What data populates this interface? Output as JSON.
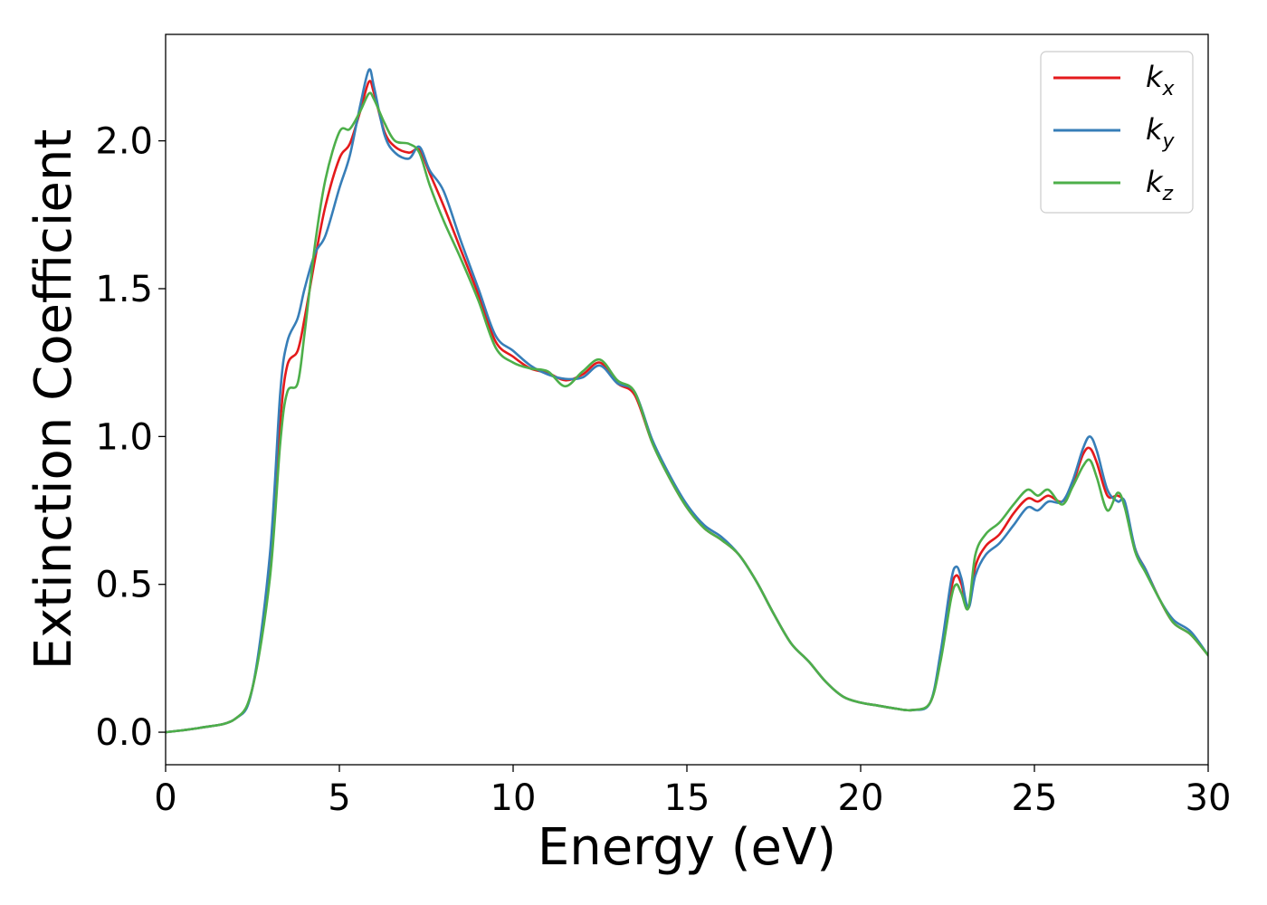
{
  "chart_data": {
    "type": "line",
    "xlabel": "Energy (eV)",
    "ylabel": "Extinction Coefficient",
    "xlim": [
      0,
      30
    ],
    "ylim": [
      -0.11,
      2.36
    ],
    "xticks": [
      0,
      5,
      10,
      15,
      20,
      25,
      30
    ],
    "xtick_labels": [
      "0",
      "5",
      "10",
      "15",
      "20",
      "25",
      "30"
    ],
    "yticks": [
      0.0,
      0.5,
      1.0,
      1.5,
      2.0
    ],
    "ytick_labels": [
      "0.0",
      "0.5",
      "1.0",
      "1.5",
      "2.0"
    ],
    "grid": false,
    "legend_position": "top-right",
    "series": [
      {
        "name": "k_x",
        "label_main": "k",
        "label_sub": "x",
        "color": "#e41a1c",
        "x": [
          0,
          1,
          2,
          2.5,
          3,
          3.3,
          3.5,
          3.8,
          4,
          4.3,
          4.6,
          5,
          5.3,
          5.6,
          5.85,
          6,
          6.3,
          6.6,
          7,
          7.3,
          7.6,
          8,
          8.5,
          9,
          9.5,
          10,
          10.5,
          11,
          11.5,
          12,
          12.5,
          13,
          13.5,
          14,
          14.5,
          15,
          15.5,
          16,
          16.5,
          17,
          17.5,
          18,
          18.5,
          19,
          19.5,
          20,
          20.5,
          21,
          21.5,
          22,
          22.3,
          22.6,
          22.75,
          22.9,
          23.1,
          23.3,
          23.6,
          24,
          24.4,
          24.8,
          25.1,
          25.4,
          25.8,
          26.1,
          26.4,
          26.6,
          26.8,
          27.1,
          27.4,
          27.6,
          27.9,
          28.2,
          28.6,
          29,
          29.5,
          30
        ],
        "y": [
          0.0,
          0.015,
          0.045,
          0.15,
          0.55,
          1.05,
          1.24,
          1.29,
          1.4,
          1.6,
          1.78,
          1.94,
          1.99,
          2.1,
          2.2,
          2.16,
          2.03,
          1.98,
          1.96,
          1.97,
          1.89,
          1.78,
          1.63,
          1.48,
          1.32,
          1.27,
          1.23,
          1.215,
          1.19,
          1.21,
          1.25,
          1.18,
          1.14,
          0.98,
          0.86,
          0.76,
          0.69,
          0.65,
          0.6,
          0.51,
          0.4,
          0.3,
          0.24,
          0.17,
          0.12,
          0.1,
          0.09,
          0.08,
          0.075,
          0.1,
          0.25,
          0.48,
          0.53,
          0.5,
          0.42,
          0.56,
          0.63,
          0.67,
          0.74,
          0.79,
          0.78,
          0.8,
          0.78,
          0.84,
          0.94,
          0.96,
          0.91,
          0.8,
          0.8,
          0.77,
          0.62,
          0.55,
          0.45,
          0.37,
          0.33,
          0.26
        ]
      },
      {
        "name": "k_y",
        "label_main": "k",
        "label_sub": "y",
        "color": "#377eb8",
        "x": [
          0,
          1,
          2,
          2.5,
          3,
          3.3,
          3.5,
          3.8,
          4,
          4.3,
          4.6,
          5,
          5.3,
          5.6,
          5.85,
          6,
          6.3,
          6.6,
          7,
          7.3,
          7.6,
          8,
          8.5,
          9,
          9.5,
          10,
          10.5,
          11,
          11.5,
          12,
          12.5,
          13,
          13.5,
          14,
          14.5,
          15,
          15.5,
          16,
          16.5,
          17,
          17.5,
          18,
          18.5,
          19,
          19.5,
          20,
          20.5,
          21,
          21.5,
          22,
          22.3,
          22.6,
          22.75,
          22.9,
          23.1,
          23.3,
          23.6,
          24,
          24.4,
          24.8,
          25.1,
          25.4,
          25.8,
          26.1,
          26.4,
          26.6,
          26.8,
          27.1,
          27.4,
          27.6,
          27.9,
          28.2,
          28.6,
          29,
          29.5,
          30
        ],
        "y": [
          0.0,
          0.015,
          0.045,
          0.15,
          0.6,
          1.15,
          1.32,
          1.4,
          1.5,
          1.62,
          1.68,
          1.84,
          1.95,
          2.12,
          2.24,
          2.18,
          2.02,
          1.96,
          1.94,
          1.98,
          1.9,
          1.83,
          1.66,
          1.5,
          1.34,
          1.29,
          1.24,
          1.21,
          1.195,
          1.2,
          1.24,
          1.18,
          1.15,
          0.99,
          0.87,
          0.77,
          0.7,
          0.66,
          0.6,
          0.51,
          0.4,
          0.3,
          0.24,
          0.17,
          0.12,
          0.1,
          0.09,
          0.08,
          0.075,
          0.1,
          0.27,
          0.51,
          0.56,
          0.52,
          0.42,
          0.53,
          0.6,
          0.64,
          0.7,
          0.76,
          0.75,
          0.78,
          0.78,
          0.85,
          0.96,
          1.0,
          0.95,
          0.82,
          0.78,
          0.78,
          0.62,
          0.55,
          0.45,
          0.38,
          0.34,
          0.26
        ]
      },
      {
        "name": "k_z",
        "label_main": "k",
        "label_sub": "z",
        "color": "#4daf4a",
        "x": [
          0,
          1,
          2,
          2.5,
          3,
          3.3,
          3.5,
          3.8,
          4,
          4.3,
          4.6,
          5,
          5.3,
          5.6,
          5.85,
          6,
          6.3,
          6.6,
          7,
          7.3,
          7.6,
          8,
          8.5,
          9,
          9.5,
          10,
          10.5,
          11,
          11.5,
          12,
          12.5,
          13,
          13.5,
          14,
          14.5,
          15,
          15.5,
          16,
          16.5,
          17,
          17.5,
          18,
          18.5,
          19,
          19.5,
          20,
          20.5,
          21,
          21.5,
          22,
          22.3,
          22.6,
          22.75,
          22.9,
          23.1,
          23.3,
          23.6,
          24,
          24.4,
          24.8,
          25.1,
          25.4,
          25.8,
          26.1,
          26.4,
          26.6,
          26.8,
          27.1,
          27.4,
          27.6,
          27.9,
          28.2,
          28.6,
          29,
          29.5,
          30
        ],
        "y": [
          0.0,
          0.015,
          0.045,
          0.15,
          0.52,
          0.98,
          1.15,
          1.18,
          1.35,
          1.65,
          1.87,
          2.03,
          2.04,
          2.1,
          2.16,
          2.14,
          2.06,
          2.0,
          1.99,
          1.96,
          1.85,
          1.73,
          1.6,
          1.46,
          1.3,
          1.25,
          1.23,
          1.22,
          1.17,
          1.22,
          1.26,
          1.19,
          1.15,
          0.98,
          0.86,
          0.76,
          0.69,
          0.65,
          0.6,
          0.51,
          0.4,
          0.3,
          0.24,
          0.17,
          0.12,
          0.1,
          0.09,
          0.08,
          0.075,
          0.1,
          0.24,
          0.45,
          0.5,
          0.47,
          0.42,
          0.6,
          0.67,
          0.71,
          0.77,
          0.82,
          0.8,
          0.82,
          0.77,
          0.83,
          0.9,
          0.92,
          0.86,
          0.75,
          0.81,
          0.76,
          0.61,
          0.54,
          0.45,
          0.37,
          0.33,
          0.26
        ]
      }
    ]
  }
}
